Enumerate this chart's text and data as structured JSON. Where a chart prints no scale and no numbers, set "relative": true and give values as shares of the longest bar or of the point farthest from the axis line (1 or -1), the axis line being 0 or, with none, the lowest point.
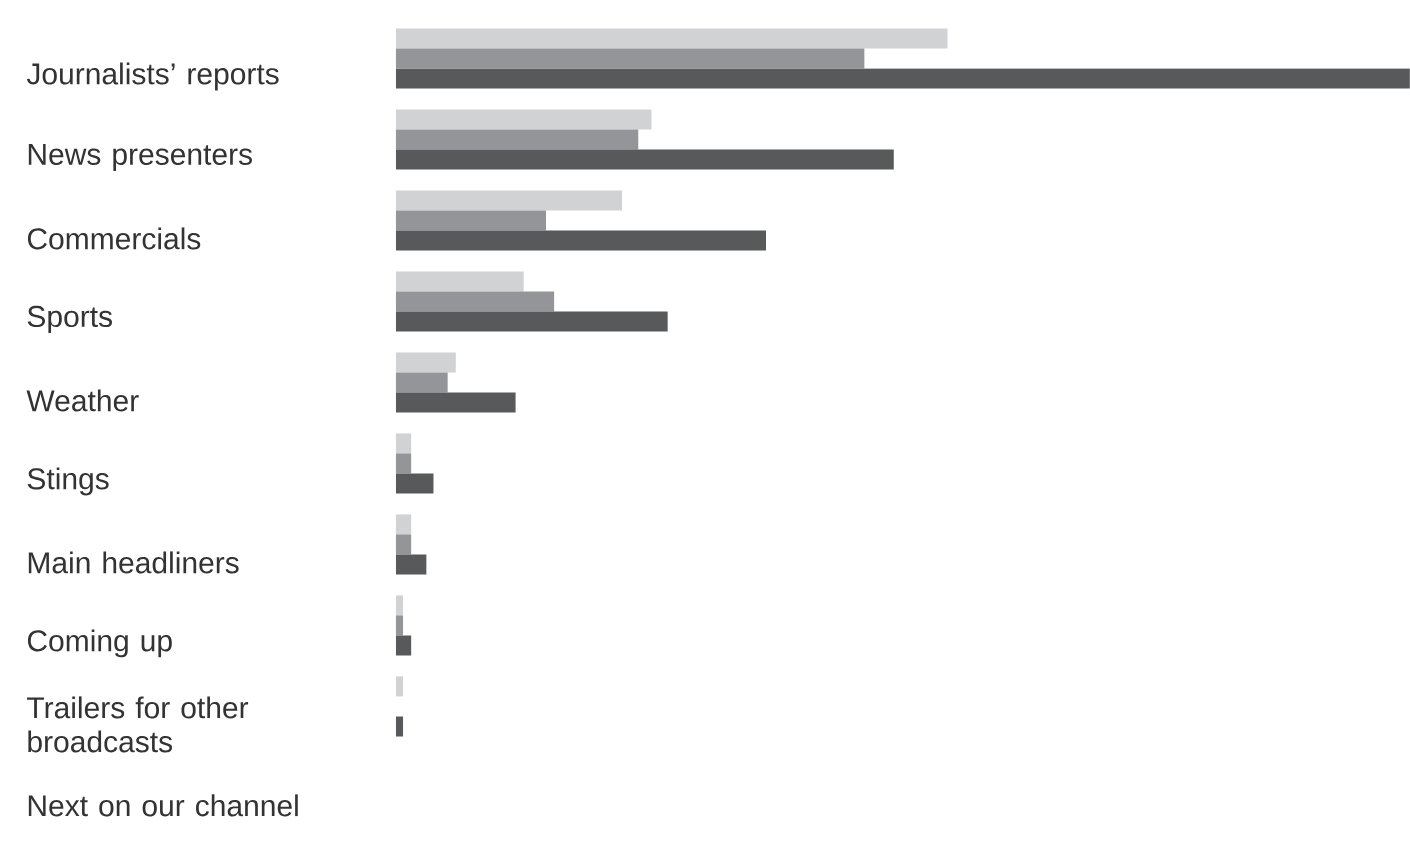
{
  "chart_data": {
    "type": "bar",
    "orientation": "horizontal",
    "relative": true,
    "categories": [
      "Journalists’ reports",
      "News presenters",
      "Commercials",
      "Sports",
      "Weather",
      "Stings",
      "Main headliners",
      "Coming up",
      "Trailers for other broadcasts",
      "Next on our channel"
    ],
    "series": [
      {
        "color": "#d1d2d4",
        "values": [
          0.544,
          0.252,
          0.223,
          0.126,
          0.059,
          0.015,
          0.015,
          0.007,
          0.007,
          0
        ]
      },
      {
        "color": "#939598",
        "values": [
          0.462,
          0.239,
          0.148,
          0.156,
          0.051,
          0.015,
          0.015,
          0.007,
          0,
          0
        ]
      },
      {
        "color": "#58595b",
        "values": [
          1,
          0.491,
          0.365,
          0.268,
          0.118,
          0.037,
          0.03,
          0.015,
          0.007,
          0
        ]
      }
    ]
  }
}
